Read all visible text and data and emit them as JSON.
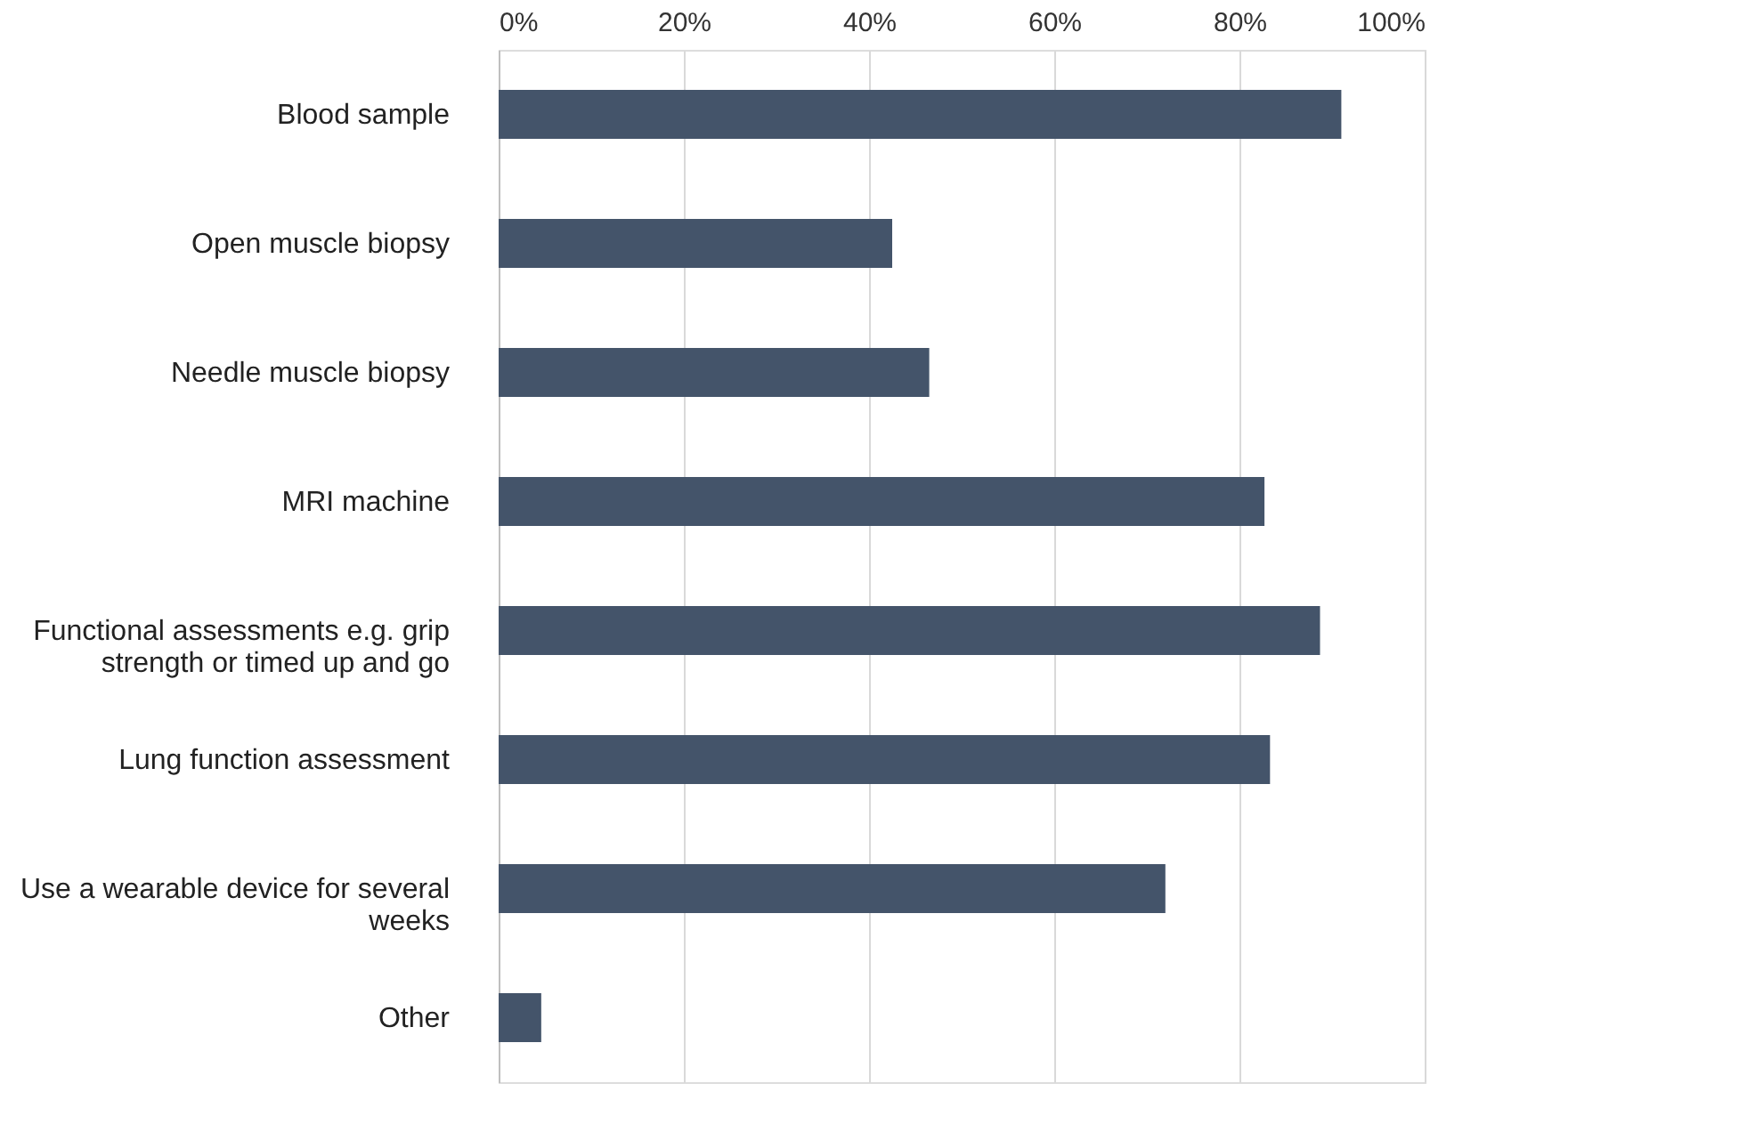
{
  "chart_data": {
    "type": "bar",
    "orientation": "horizontal",
    "categories": [
      "Blood sample",
      "Open muscle biopsy",
      "Needle muscle biopsy",
      "MRI machine",
      "Functional assessments e.g. grip strength or timed up and go",
      "Lung function assessment",
      "Use a wearable device for several weeks",
      "Other"
    ],
    "values": [
      91,
      42.5,
      46.5,
      82.7,
      88.7,
      83.3,
      72,
      4.6
    ],
    "color": "#44546a",
    "xlim": [
      0,
      100
    ],
    "xticks": [
      {
        "value": 0,
        "label": "0%"
      },
      {
        "value": 20,
        "label": "20%"
      },
      {
        "value": 40,
        "label": "40%"
      },
      {
        "value": 60,
        "label": "60%"
      },
      {
        "value": 80,
        "label": "80%"
      },
      {
        "value": 100,
        "label": "100%"
      }
    ],
    "grid": "x"
  }
}
